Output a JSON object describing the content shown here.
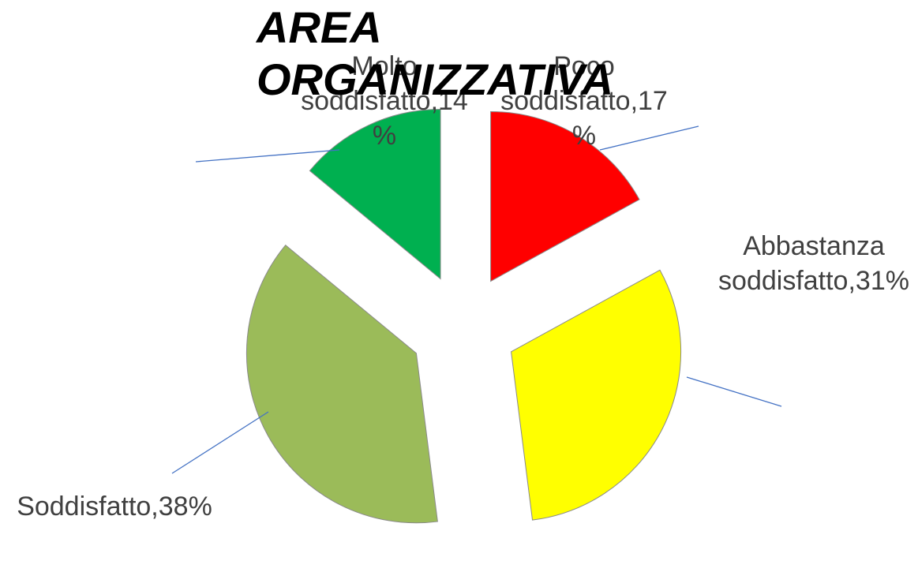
{
  "chart_data": {
    "type": "pie",
    "title": "AREA ORGANIZZATIVA",
    "categories": [
      "Poco soddisfatto",
      "Abbastanza soddisfatto",
      "Soddisfatto",
      "Molto soddisfatto"
    ],
    "values": [
      17,
      31,
      38,
      14
    ],
    "value_labels": [
      "Poco soddisfatto,17%",
      "Abbastanza soddisfatto,31%",
      "Soddisfatto,38%",
      "Molto soddisfatto,14%"
    ],
    "colors": [
      "#ff0000",
      "#ffff00",
      "#9bbb59",
      "#00b050"
    ]
  }
}
